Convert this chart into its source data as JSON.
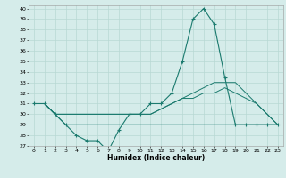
{
  "title": "",
  "xlabel": "Humidex (Indice chaleur)",
  "ylabel": "",
  "background_color": "#d5ecea",
  "grid_color": "#b8d8d4",
  "line_color": "#1a7a6e",
  "x_values": [
    0,
    1,
    2,
    3,
    4,
    5,
    6,
    7,
    8,
    9,
    10,
    11,
    12,
    13,
    14,
    15,
    16,
    17,
    18,
    19,
    20,
    21,
    22,
    23
  ],
  "series1": [
    31,
    31,
    30,
    29,
    28,
    27.5,
    27.5,
    26.5,
    28.5,
    30,
    30,
    31,
    31,
    32,
    35,
    39,
    40,
    38.5,
    33.5,
    29,
    29,
    29,
    29,
    29
  ],
  "series2": [
    31,
    31,
    30,
    30,
    30,
    30,
    30,
    30,
    30,
    30,
    30,
    30,
    30.5,
    31,
    31.5,
    31.5,
    32,
    32,
    32.5,
    32,
    31.5,
    31,
    30,
    29
  ],
  "series3": [
    31,
    31,
    30,
    30,
    30,
    30,
    30,
    30,
    30,
    30,
    30,
    30,
    30.5,
    31,
    31.5,
    32,
    32.5,
    33,
    33,
    33,
    32,
    31,
    30,
    29
  ],
  "series4": [
    31,
    31,
    30,
    29,
    29,
    29,
    29,
    29,
    29,
    29,
    29,
    29,
    29,
    29,
    29,
    29,
    29,
    29,
    29,
    29,
    29,
    29,
    29,
    29
  ],
  "ylim": [
    27,
    40
  ],
  "yticks": [
    27,
    28,
    29,
    30,
    31,
    32,
    33,
    34,
    35,
    36,
    37,
    38,
    39,
    40
  ],
  "xticks": [
    0,
    1,
    2,
    3,
    4,
    5,
    6,
    7,
    8,
    9,
    10,
    11,
    12,
    13,
    14,
    15,
    16,
    17,
    18,
    19,
    20,
    21,
    22,
    23
  ]
}
